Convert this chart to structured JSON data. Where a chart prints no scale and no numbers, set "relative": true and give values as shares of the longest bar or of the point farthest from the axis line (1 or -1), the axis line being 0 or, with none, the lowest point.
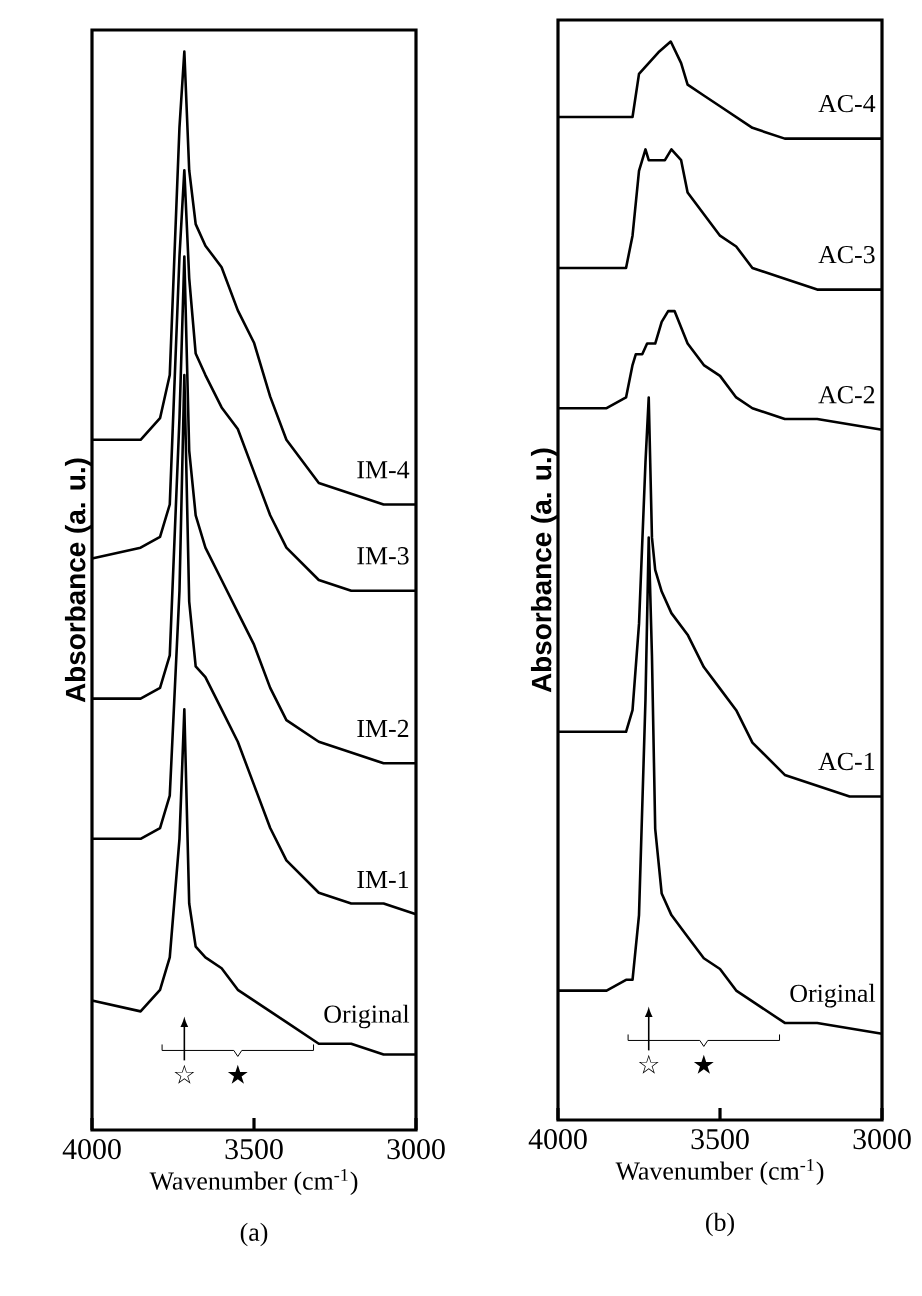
{
  "chart_data": [
    {
      "type": "line",
      "title": "(a)",
      "xlabel": "Wavenumber (cm$^{-1}$)",
      "ylabel": "Absorbance (a. u.)",
      "relative": true,
      "xlim": [
        4000,
        3000
      ],
      "xticks": [
        4000,
        3500,
        3000
      ],
      "marker": "none",
      "line_style": "solid",
      "annotations": [
        "☆",
        "★"
      ],
      "series": [
        {
          "name": "Original",
          "color": "#000000",
          "x": [
            4000,
            3850,
            3790,
            3760,
            3730,
            3715,
            3700,
            3680,
            3650,
            3600,
            3550,
            3500,
            3450,
            3400,
            3300,
            3200,
            3100,
            3000
          ],
          "values": [
            0.12,
            0.11,
            0.13,
            0.16,
            0.27,
            0.39,
            0.21,
            0.17,
            0.16,
            0.15,
            0.13,
            0.12,
            0.11,
            0.1,
            0.08,
            0.08,
            0.07,
            0.07
          ]
        },
        {
          "name": "IM-1",
          "color": "#000000",
          "x": [
            4000,
            3850,
            3790,
            3760,
            3730,
            3715,
            3700,
            3680,
            3650,
            3600,
            3550,
            3500,
            3450,
            3400,
            3300,
            3200,
            3100,
            3000
          ],
          "values": [
            0.27,
            0.27,
            0.28,
            0.31,
            0.5,
            0.7,
            0.49,
            0.43,
            0.42,
            0.39,
            0.36,
            0.32,
            0.28,
            0.25,
            0.22,
            0.21,
            0.21,
            0.2
          ]
        },
        {
          "name": "IM-2",
          "color": "#000000",
          "x": [
            4000,
            3850,
            3790,
            3760,
            3730,
            3715,
            3700,
            3680,
            3650,
            3600,
            3550,
            3500,
            3450,
            3400,
            3300,
            3200,
            3100,
            3000
          ],
          "values": [
            0.4,
            0.4,
            0.41,
            0.44,
            0.66,
            0.81,
            0.63,
            0.57,
            0.54,
            0.51,
            0.48,
            0.45,
            0.41,
            0.38,
            0.36,
            0.35,
            0.34,
            0.34
          ]
        },
        {
          "name": "IM-3",
          "color": "#000000",
          "x": [
            4000,
            3850,
            3790,
            3760,
            3730,
            3715,
            3700,
            3680,
            3650,
            3600,
            3550,
            3500,
            3450,
            3400,
            3300,
            3200,
            3100,
            3000
          ],
          "values": [
            0.53,
            0.54,
            0.55,
            0.58,
            0.81,
            0.89,
            0.79,
            0.72,
            0.7,
            0.67,
            0.65,
            0.61,
            0.57,
            0.54,
            0.51,
            0.5,
            0.5,
            0.5
          ]
        },
        {
          "name": "IM-4",
          "color": "#000000",
          "x": [
            4000,
            3850,
            3790,
            3760,
            3730,
            3715,
            3700,
            3680,
            3650,
            3600,
            3550,
            3500,
            3450,
            3400,
            3300,
            3200,
            3100,
            3000
          ],
          "values": [
            0.64,
            0.64,
            0.66,
            0.7,
            0.93,
            1.0,
            0.89,
            0.84,
            0.82,
            0.8,
            0.76,
            0.73,
            0.68,
            0.64,
            0.6,
            0.59,
            0.58,
            0.58
          ]
        }
      ]
    },
    {
      "type": "line",
      "title": "(b)",
      "xlabel": "Wavenumber (cm$^{-1}$)",
      "ylabel": "Absorbance (a. u.)",
      "relative": true,
      "xlim": [
        4000,
        3000
      ],
      "xticks": [
        4000,
        3500,
        3000
      ],
      "marker": "none",
      "line_style": "solid",
      "annotations": [
        "☆",
        "★"
      ],
      "series": [
        {
          "name": "Original",
          "color": "#000000",
          "x": [
            4000,
            3850,
            3790,
            3770,
            3750,
            3730,
            3720,
            3710,
            3700,
            3680,
            3650,
            3600,
            3550,
            3500,
            3450,
            3400,
            3300,
            3200,
            3000
          ],
          "values": [
            0.12,
            0.12,
            0.13,
            0.13,
            0.19,
            0.39,
            0.54,
            0.43,
            0.27,
            0.21,
            0.19,
            0.17,
            0.15,
            0.14,
            0.12,
            0.11,
            0.09,
            0.09,
            0.08
          ]
        },
        {
          "name": "AC-1",
          "color": "#000000",
          "x": [
            4000,
            3850,
            3790,
            3770,
            3750,
            3730,
            3720,
            3710,
            3700,
            3680,
            3650,
            3600,
            3550,
            3500,
            3450,
            3400,
            3300,
            3200,
            3100,
            3000
          ],
          "values": [
            0.36,
            0.36,
            0.36,
            0.38,
            0.46,
            0.61,
            0.67,
            0.54,
            0.51,
            0.49,
            0.47,
            0.45,
            0.42,
            0.4,
            0.38,
            0.35,
            0.32,
            0.31,
            0.3,
            0.3
          ]
        },
        {
          "name": "AC-2",
          "color": "#000000",
          "x": [
            4000,
            3850,
            3790,
            3770,
            3760,
            3740,
            3725,
            3700,
            3680,
            3660,
            3640,
            3600,
            3550,
            3500,
            3450,
            3400,
            3300,
            3200,
            3000
          ],
          "values": [
            0.66,
            0.66,
            0.67,
            0.7,
            0.71,
            0.71,
            0.72,
            0.72,
            0.74,
            0.75,
            0.75,
            0.72,
            0.7,
            0.69,
            0.67,
            0.66,
            0.65,
            0.65,
            0.64
          ]
        },
        {
          "name": "AC-3",
          "color": "#000000",
          "x": [
            4000,
            3850,
            3790,
            3770,
            3750,
            3730,
            3720,
            3700,
            3670,
            3650,
            3620,
            3600,
            3550,
            3500,
            3450,
            3400,
            3300,
            3200,
            3000
          ],
          "values": [
            0.79,
            0.79,
            0.79,
            0.82,
            0.88,
            0.9,
            0.89,
            0.89,
            0.89,
            0.9,
            0.89,
            0.86,
            0.84,
            0.82,
            0.81,
            0.79,
            0.78,
            0.77,
            0.77
          ]
        },
        {
          "name": "AC-4",
          "color": "#000000",
          "x": [
            4000,
            3850,
            3790,
            3770,
            3750,
            3720,
            3690,
            3652,
            3620,
            3600,
            3550,
            3500,
            3400,
            3300,
            3200,
            3000
          ],
          "values": [
            0.93,
            0.93,
            0.93,
            0.93,
            0.97,
            0.98,
            0.99,
            1.0,
            0.98,
            0.96,
            0.95,
            0.94,
            0.92,
            0.91,
            0.91,
            0.91
          ]
        }
      ]
    }
  ]
}
